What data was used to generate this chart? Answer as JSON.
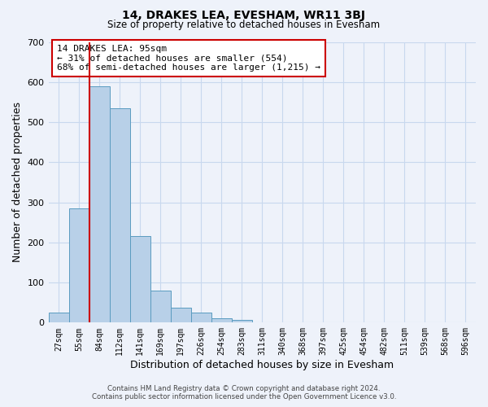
{
  "title": "14, DRAKES LEA, EVESHAM, WR11 3BJ",
  "subtitle": "Size of property relative to detached houses in Evesham",
  "xlabel": "Distribution of detached houses by size in Evesham",
  "ylabel": "Number of detached properties",
  "bar_labels": [
    "27sqm",
    "55sqm",
    "84sqm",
    "112sqm",
    "141sqm",
    "169sqm",
    "197sqm",
    "226sqm",
    "254sqm",
    "283sqm",
    "311sqm",
    "340sqm",
    "368sqm",
    "397sqm",
    "425sqm",
    "454sqm",
    "482sqm",
    "511sqm",
    "539sqm",
    "568sqm",
    "596sqm"
  ],
  "bar_values": [
    25,
    285,
    590,
    535,
    215,
    80,
    37,
    25,
    10,
    7,
    0,
    0,
    0,
    0,
    0,
    0,
    0,
    0,
    0,
    0,
    0
  ],
  "bar_color": "#b8d0e8",
  "bar_edge_color": "#5a9bc0",
  "vline_color": "#cc0000",
  "annotation_text": "14 DRAKES LEA: 95sqm\n← 31% of detached houses are smaller (554)\n68% of semi-detached houses are larger (1,215) →",
  "annotation_box_color": "#ffffff",
  "annotation_box_edge": "#cc0000",
  "ylim": [
    0,
    700
  ],
  "yticks": [
    0,
    100,
    200,
    300,
    400,
    500,
    600,
    700
  ],
  "grid_color": "#c8d8ee",
  "background_color": "#eef2fa",
  "footer_line1": "Contains HM Land Registry data © Crown copyright and database right 2024.",
  "footer_line2": "Contains public sector information licensed under the Open Government Licence v3.0."
}
